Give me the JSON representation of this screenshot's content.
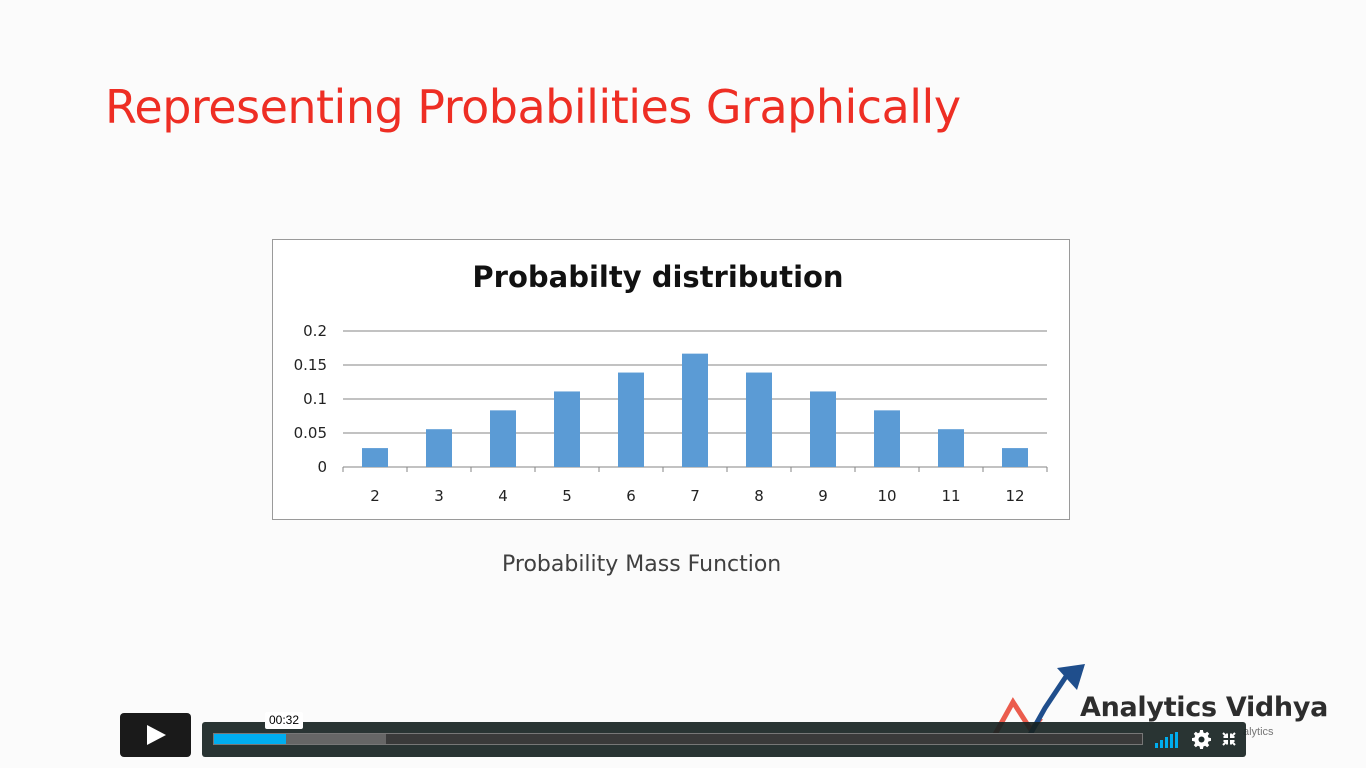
{
  "slide": {
    "title": "Representing Probabilities Graphically",
    "caption": "Probability Mass Function",
    "title_color": "#ee2e24"
  },
  "chart_data": {
    "type": "bar",
    "title": "Probabilty distribution",
    "categories": [
      "2",
      "3",
      "4",
      "5",
      "6",
      "7",
      "8",
      "9",
      "10",
      "11",
      "12"
    ],
    "values": [
      0.0278,
      0.0556,
      0.0833,
      0.1111,
      0.1389,
      0.1667,
      0.1389,
      0.1111,
      0.0833,
      0.0556,
      0.0278
    ],
    "yticks": [
      "0",
      "0.05",
      "0.1",
      "0.15",
      "0.2"
    ],
    "ylim": [
      0,
      0.2
    ],
    "xlabel": "",
    "ylabel": "",
    "grid": true,
    "bar_color": "#5b9bd5"
  },
  "logo": {
    "name": "Analytics Vidhya",
    "tagline": "Learn Everything About Analytics"
  },
  "player": {
    "hover_time": "00:32",
    "played_fraction": 0.078,
    "buffered_fraction": 0.185,
    "accent_color": "#00adef",
    "icons": [
      "play-icon",
      "volume-icon",
      "settings-icon",
      "fullscreen-icon"
    ]
  }
}
